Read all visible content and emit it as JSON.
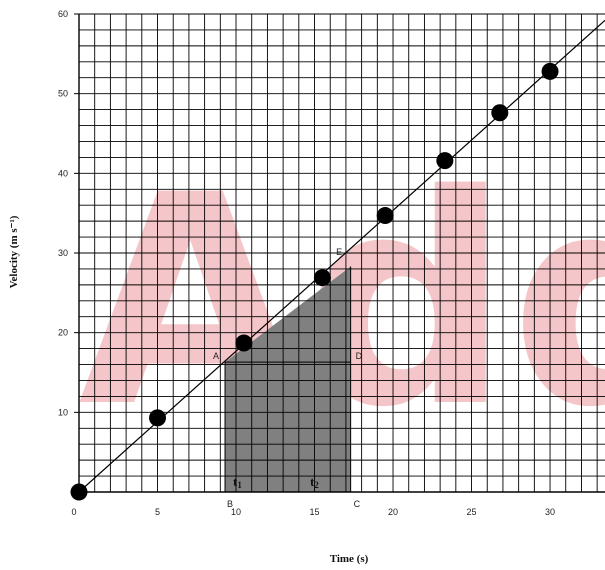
{
  "chart_data": {
    "type": "scatter",
    "title": "",
    "xlabel": "Time (s)",
    "ylabel": "Velocity (m s⁻¹)",
    "xlim": [
      0,
      33.5
    ],
    "ylim": [
      0,
      60
    ],
    "x_ticks": [
      0,
      5,
      10,
      15,
      20,
      25,
      30
    ],
    "y_ticks": [
      10,
      20,
      30,
      40,
      50,
      60
    ],
    "grid": true,
    "series": [
      {
        "points": [
          {
            "x": 0,
            "y": 0
          },
          {
            "x": 5,
            "y": 9.3
          },
          {
            "x": 10.5,
            "y": 18.7
          },
          {
            "x": 15.5,
            "y": 26.9
          },
          {
            "x": 19.5,
            "y": 34.7
          },
          {
            "x": 23.3,
            "y": 41.6
          },
          {
            "x": 26.8,
            "y": 47.6
          },
          {
            "x": 30,
            "y": 52.8
          }
        ]
      }
    ],
    "trend_line": {
      "from": [
        0,
        0
      ],
      "to": [
        33.5,
        59.2
      ]
    },
    "shaded_region": {
      "x_start": 9.3,
      "x_end": 17.3,
      "y_top_start": 16.3,
      "y_top_end": 28.3
    },
    "annotations": {
      "A": {
        "x": 9.3,
        "y": 16.3
      },
      "D": {
        "x": 17.3,
        "y": 16.3
      },
      "E": {
        "x": 16.5,
        "y": 29.5
      },
      "B": {
        "x": 9.3,
        "y": 0
      },
      "C": {
        "x": 17.3,
        "y": 0
      },
      "t1": {
        "x": 9.3
      },
      "t2": {
        "x": 17.3
      }
    },
    "labels": {
      "A": "A",
      "D": "D",
      "E": "E",
      "B": "B",
      "C": "C",
      "t1": "t",
      "t1_sub": "1",
      "t2": "t",
      "t2_sub": "2"
    },
    "colors": {
      "shade": "#808080",
      "marker": "#000000",
      "line": "#000000",
      "grid": "#000000",
      "watermark": "#f2b3b8"
    }
  },
  "watermark": {
    "text": "Adda"
  }
}
